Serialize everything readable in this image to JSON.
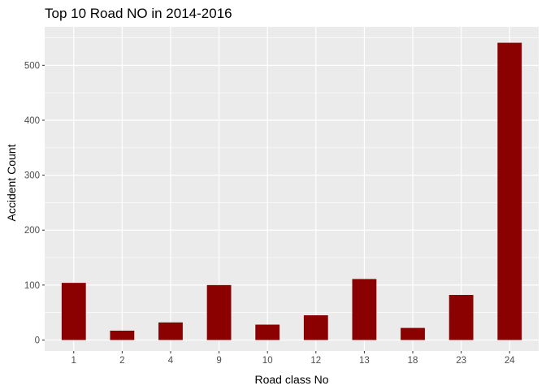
{
  "chart_data": {
    "type": "bar",
    "title": "Top 10 Road NO in 2014-2016",
    "xlabel": "Road class No",
    "ylabel": "Accident Count",
    "categories": [
      "1",
      "2",
      "4",
      "9",
      "10",
      "12",
      "13",
      "18",
      "23",
      "24"
    ],
    "values": [
      104,
      17,
      32,
      100,
      28,
      45,
      111,
      22,
      82,
      541
    ],
    "ylim": [
      -20,
      570
    ],
    "yticks": [
      0,
      100,
      200,
      300,
      400,
      500
    ],
    "grid": true,
    "legend": "none",
    "colors": {
      "bar": "#8B0000",
      "panel": "#EBEBEB",
      "grid_major": "#FFFFFF",
      "tick_text": "#4D4D4D",
      "tick_mark": "#333333"
    }
  }
}
